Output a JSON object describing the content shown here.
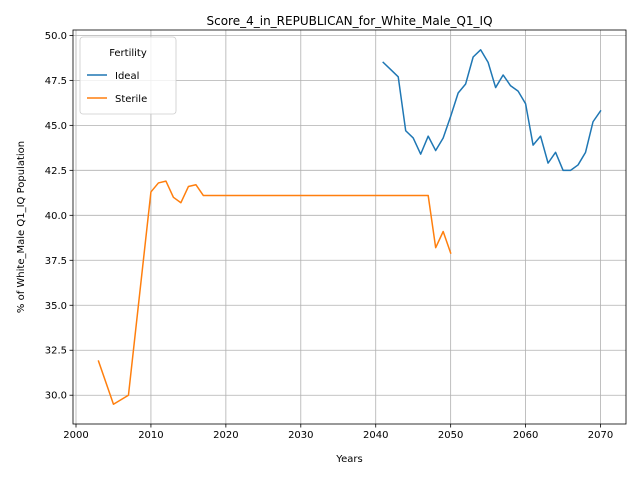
{
  "chart_data": {
    "type": "line",
    "title": "Score_4_in_REPUBLICAN_for_White_Male_Q1_IQ",
    "xlabel": "Years",
    "ylabel": "% of White_Male Q1_IQ Population",
    "xlim": [
      1999.6,
      2073.4
    ],
    "ylim": [
      28.4,
      50.3
    ],
    "xticks": [
      2000,
      2010,
      2020,
      2030,
      2040,
      2050,
      2060,
      2070
    ],
    "yticks": [
      30.0,
      32.5,
      35.0,
      37.5,
      40.0,
      42.5,
      45.0,
      47.5,
      50.0
    ],
    "ytick_labels": [
      "30.0",
      "32.5",
      "35.0",
      "37.5",
      "40.0",
      "42.5",
      "45.0",
      "47.5",
      "50.0"
    ],
    "grid": true,
    "legend": {
      "title": "Fertility",
      "placement": "upper-left"
    },
    "series": [
      {
        "name": "Ideal",
        "color": "#1f77b4",
        "points": [
          [
            2041,
            48.5
          ],
          [
            2042,
            48.1
          ],
          [
            2043,
            47.7
          ],
          [
            2044,
            44.7
          ],
          [
            2045,
            44.3
          ],
          [
            2046,
            43.4
          ],
          [
            2047,
            44.4
          ],
          [
            2048,
            43.6
          ],
          [
            2049,
            44.3
          ],
          [
            2050,
            45.5
          ],
          [
            2051,
            46.8
          ],
          [
            2052,
            47.3
          ],
          [
            2053,
            48.8
          ],
          [
            2054,
            49.2
          ],
          [
            2055,
            48.5
          ],
          [
            2056,
            47.1
          ],
          [
            2057,
            47.8
          ],
          [
            2058,
            47.2
          ],
          [
            2059,
            46.9
          ],
          [
            2060,
            46.2
          ],
          [
            2061,
            43.9
          ],
          [
            2062,
            44.4
          ],
          [
            2063,
            42.9
          ],
          [
            2064,
            43.5
          ],
          [
            2065,
            42.5
          ],
          [
            2066,
            42.5
          ],
          [
            2067,
            42.8
          ],
          [
            2068,
            43.5
          ],
          [
            2069,
            45.2
          ],
          [
            2070,
            45.8
          ]
        ]
      },
      {
        "name": "Sterile",
        "color": "#ff7f0e",
        "points": [
          [
            2003,
            31.9
          ],
          [
            2005,
            29.5
          ],
          [
            2007,
            30.0
          ],
          [
            2010,
            41.3
          ],
          [
            2011,
            41.8
          ],
          [
            2012,
            41.9
          ],
          [
            2013,
            41.0
          ],
          [
            2014,
            40.7
          ],
          [
            2015,
            41.6
          ],
          [
            2016,
            41.7
          ],
          [
            2017,
            41.1
          ],
          [
            2020,
            41.1
          ],
          [
            2025,
            41.1
          ],
          [
            2030,
            41.1
          ],
          [
            2035,
            41.1
          ],
          [
            2040,
            41.1
          ],
          [
            2045,
            41.1
          ],
          [
            2047,
            41.1
          ],
          [
            2048,
            38.2
          ],
          [
            2049,
            39.1
          ],
          [
            2050,
            37.9
          ]
        ]
      }
    ]
  }
}
